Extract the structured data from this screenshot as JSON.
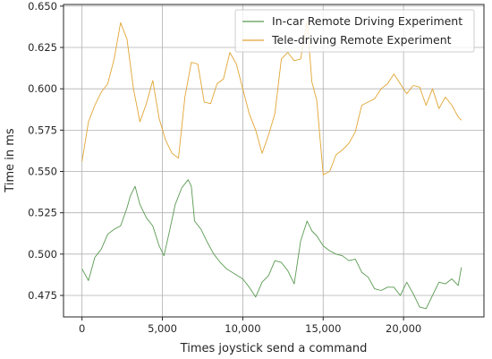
{
  "chart_data": {
    "type": "line",
    "xlabel": "Times joystick send a command",
    "ylabel": "Time in ms",
    "xlim": [
      -1150,
      25000
    ],
    "ylim": [
      0.462,
      0.651
    ],
    "x_ticks": [
      0,
      5000,
      10000,
      15000,
      20000
    ],
    "x_tick_labels": [
      "0",
      "5,000",
      "10,000",
      "15,000",
      "20,000"
    ],
    "y_ticks": [
      0.475,
      0.5,
      0.525,
      0.55,
      0.575,
      0.6,
      0.625,
      0.65
    ],
    "y_tick_labels": [
      "0.475",
      "0.500",
      "0.525",
      "0.550",
      "0.575",
      "0.600",
      "0.625",
      "0.650"
    ],
    "grid": true,
    "legend_position": "top-right",
    "series": [
      {
        "name": "In-car Remote Driving Experiment",
        "color": "#5a9a52",
        "x": [
          0,
          400,
          800,
          1200,
          1600,
          2000,
          2400,
          2800,
          3000,
          3300,
          3600,
          4000,
          4400,
          4800,
          5100,
          5400,
          5800,
          6200,
          6600,
          6800,
          7000,
          7400,
          7800,
          8200,
          8600,
          9000,
          9500,
          10000,
          10400,
          10800,
          11200,
          11600,
          12000,
          12400,
          12800,
          13200,
          13600,
          14000,
          14300,
          14600,
          15000,
          15400,
          15800,
          16200,
          16600,
          17000,
          17400,
          17800,
          18200,
          18600,
          19000,
          19400,
          19800,
          20200,
          20600,
          21000,
          21400,
          21800,
          22200,
          22600,
          23000,
          23400,
          23600
        ],
        "y": [
          0.491,
          0.484,
          0.498,
          0.503,
          0.512,
          0.515,
          0.517,
          0.528,
          0.535,
          0.541,
          0.53,
          0.522,
          0.517,
          0.505,
          0.499,
          0.512,
          0.53,
          0.54,
          0.545,
          0.541,
          0.52,
          0.515,
          0.507,
          0.5,
          0.495,
          0.491,
          0.488,
          0.485,
          0.48,
          0.474,
          0.483,
          0.487,
          0.496,
          0.495,
          0.49,
          0.482,
          0.508,
          0.52,
          0.514,
          0.511,
          0.505,
          0.502,
          0.5,
          0.499,
          0.496,
          0.497,
          0.489,
          0.486,
          0.479,
          0.478,
          0.48,
          0.48,
          0.475,
          0.483,
          0.476,
          0.468,
          0.467,
          0.475,
          0.483,
          0.482,
          0.485,
          0.481,
          0.492
        ]
      },
      {
        "name": "Tele-driving Remote Experiment",
        "color": "#e1a534",
        "x": [
          0,
          400,
          800,
          1200,
          1600,
          2000,
          2400,
          2800,
          3200,
          3600,
          4000,
          4400,
          4800,
          5200,
          5600,
          6000,
          6400,
          6800,
          7200,
          7600,
          8000,
          8400,
          8800,
          9200,
          9600,
          10000,
          10400,
          10800,
          11200,
          11600,
          12000,
          12400,
          12800,
          13200,
          13600,
          14000,
          14300,
          14600,
          15000,
          15400,
          15800,
          16200,
          16600,
          17000,
          17400,
          17800,
          18200,
          18600,
          19000,
          19400,
          19800,
          20200,
          20600,
          21000,
          21400,
          21800,
          22200,
          22600,
          23000,
          23400,
          23600
        ],
        "y": [
          0.556,
          0.58,
          0.59,
          0.598,
          0.603,
          0.618,
          0.64,
          0.63,
          0.6,
          0.58,
          0.591,
          0.605,
          0.582,
          0.569,
          0.561,
          0.558,
          0.595,
          0.616,
          0.615,
          0.592,
          0.591,
          0.603,
          0.606,
          0.622,
          0.615,
          0.6,
          0.585,
          0.575,
          0.561,
          0.572,
          0.585,
          0.618,
          0.622,
          0.617,
          0.618,
          0.641,
          0.604,
          0.593,
          0.548,
          0.55,
          0.56,
          0.563,
          0.567,
          0.574,
          0.59,
          0.592,
          0.594,
          0.6,
          0.603,
          0.609,
          0.603,
          0.597,
          0.602,
          0.601,
          0.59,
          0.6,
          0.588,
          0.595,
          0.59,
          0.583,
          0.581
        ]
      }
    ]
  }
}
